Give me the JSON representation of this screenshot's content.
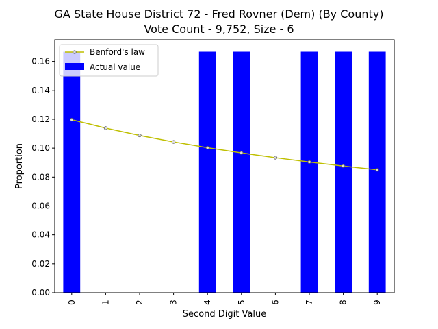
{
  "chart_data": {
    "type": "bar",
    "title": "GA State House District 72 - Fred Rovner (Dem) (By County)",
    "subtitle": "Vote Count - 9,752, Size - 6",
    "xlabel": "Second Digit Value",
    "ylabel": "Proportion",
    "categories": [
      "0",
      "1",
      "2",
      "3",
      "4",
      "5",
      "6",
      "7",
      "8",
      "9"
    ],
    "ylim": [
      0,
      0.175
    ],
    "yticks": [
      "0.00",
      "0.02",
      "0.04",
      "0.06",
      "0.08",
      "0.10",
      "0.12",
      "0.14",
      "0.16"
    ],
    "grid": false,
    "legend_position": "top-left",
    "series": [
      {
        "name": "Actual value",
        "kind": "bar",
        "color": "#0000ff",
        "values": [
          0.1667,
          0,
          0,
          0,
          0.1667,
          0.1667,
          0,
          0.1667,
          0.1667,
          0.1667
        ]
      },
      {
        "name": "Benford's law",
        "kind": "line",
        "color": "#bfbf00",
        "values": [
          0.1197,
          0.1139,
          0.1088,
          0.1043,
          0.1003,
          0.0967,
          0.0934,
          0.0904,
          0.0876,
          0.085
        ]
      }
    ]
  }
}
